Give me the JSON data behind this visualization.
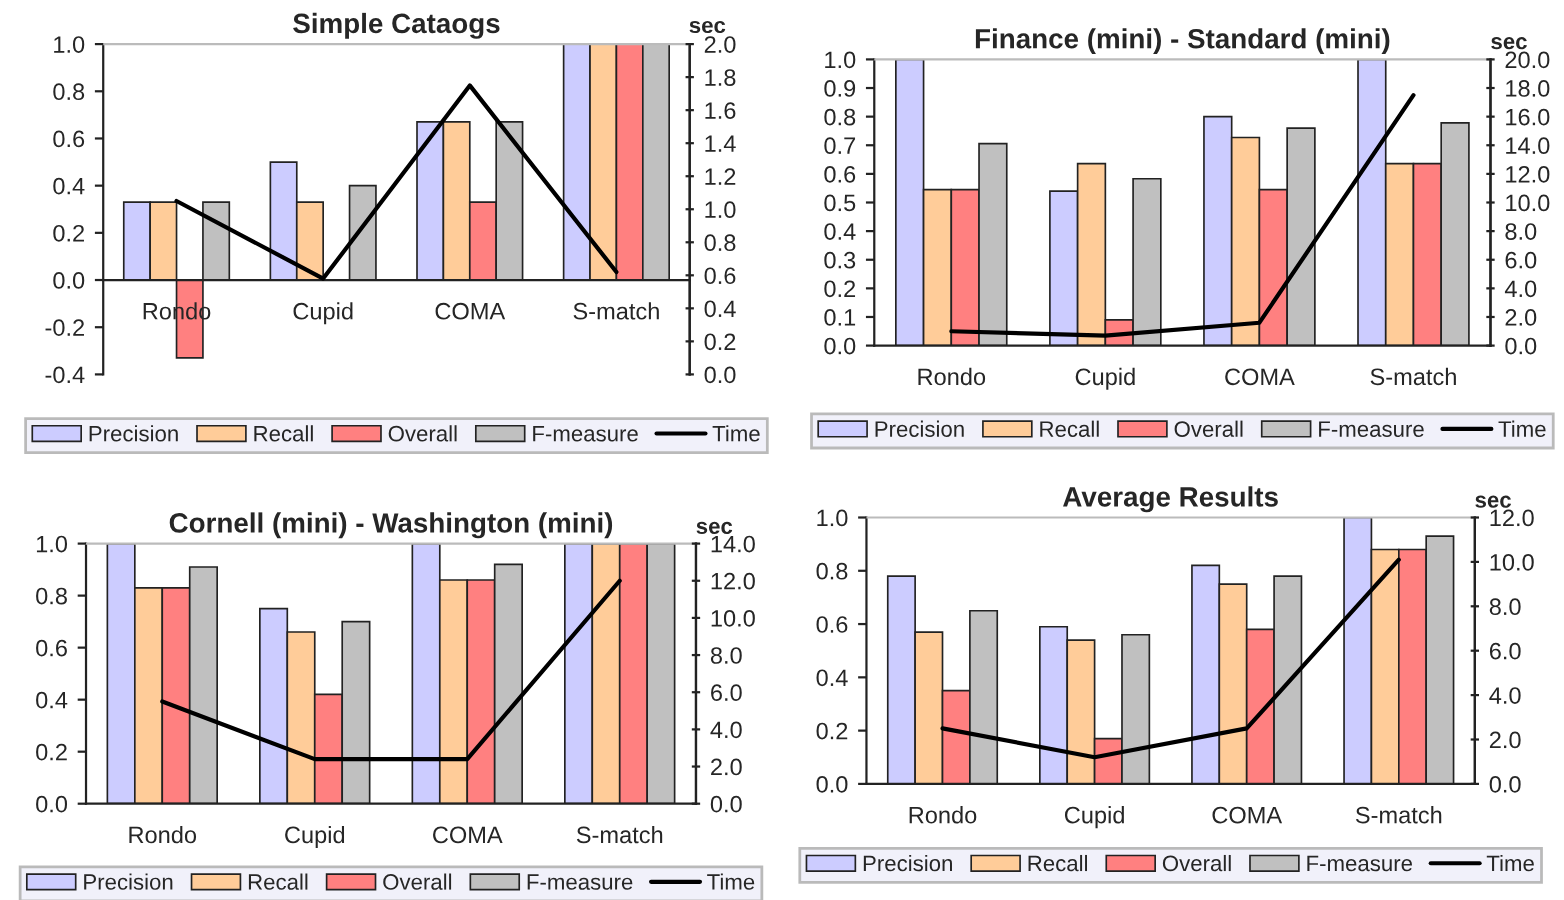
{
  "chart_data": [
    {
      "type": "bar",
      "title": "Simple Cataogs",
      "categories": [
        "Rondo",
        "Cupid",
        "COMA",
        "S-match"
      ],
      "series": [
        {
          "name": "Precision",
          "color": "#ccccff",
          "values": [
            0.33,
            0.5,
            0.67,
            1.0
          ]
        },
        {
          "name": "Recall",
          "color": "#ffcc99",
          "values": [
            0.33,
            0.33,
            0.67,
            1.0
          ]
        },
        {
          "name": "Overall",
          "color": "#ff8080",
          "values": [
            -0.33,
            null,
            0.33,
            1.0
          ]
        },
        {
          "name": "F-measure",
          "color": "#c0c0c0",
          "values": [
            0.33,
            0.4,
            0.67,
            1.0
          ]
        },
        {
          "name": "Time",
          "color": "#000000",
          "type": "line",
          "axis": "y2",
          "values": [
            1.05,
            0.58,
            1.75,
            0.62
          ]
        }
      ],
      "ylim": [
        -0.4,
        1.0
      ],
      "yticks": [
        {
          "value": -0.4,
          "label": "-0.4"
        },
        {
          "value": -0.2,
          "label": "-0.2"
        },
        {
          "value": 0,
          "label": "0.0"
        },
        {
          "value": 0.2,
          "label": "0.2"
        },
        {
          "value": 0.4,
          "label": "0.4"
        },
        {
          "value": 0.6,
          "label": "0.6"
        },
        {
          "value": 0.8,
          "label": "0.8"
        },
        {
          "value": 1,
          "label": "1.0"
        }
      ],
      "y2lim": [
        0,
        2.0
      ],
      "y2ticks": [
        {
          "value": 0,
          "label": "0.0"
        },
        {
          "value": 0.2,
          "label": "0.2"
        },
        {
          "value": 0.4,
          "label": "0.4"
        },
        {
          "value": 0.6,
          "label": "0.6"
        },
        {
          "value": 0.8,
          "label": "0.8"
        },
        {
          "value": 1.0,
          "label": "1.0"
        },
        {
          "value": 1.2,
          "label": "1.2"
        },
        {
          "value": 1.4,
          "label": "1.4"
        },
        {
          "value": 1.6,
          "label": "1.6"
        },
        {
          "value": 1.8,
          "label": "1.8"
        },
        {
          "value": 2.0,
          "label": "2.0"
        }
      ],
      "y2label": "sec",
      "legend": "bottom",
      "marker": "none"
    },
    {
      "type": "bar",
      "title": "Finance (mini) - Standard (mini)",
      "categories": [
        "Rondo",
        "Cupid",
        "COMA",
        "S-match"
      ],
      "series": [
        {
          "name": "Precision",
          "color": "#ccccff",
          "values": [
            1.0,
            0.54,
            0.8,
            1.0
          ]
        },
        {
          "name": "Recall",
          "color": "#ffcc99",
          "values": [
            0.545,
            0.636,
            0.727,
            0.636
          ]
        },
        {
          "name": "Overall",
          "color": "#ff8080",
          "values": [
            0.545,
            0.09,
            0.545,
            0.636
          ]
        },
        {
          "name": "F-measure",
          "color": "#c0c0c0",
          "values": [
            0.706,
            0.583,
            0.76,
            0.778
          ]
        },
        {
          "name": "Time",
          "color": "#000000",
          "type": "line",
          "axis": "y2",
          "values": [
            1.0,
            0.7,
            1.6,
            17.5
          ]
        }
      ],
      "ylim": [
        0,
        1.0
      ],
      "yticks": [
        {
          "value": 0,
          "label": "0.0"
        },
        {
          "value": 0.1,
          "label": "0.1"
        },
        {
          "value": 0.2,
          "label": "0.2"
        },
        {
          "value": 0.3,
          "label": "0.3"
        },
        {
          "value": 0.4,
          "label": "0.4"
        },
        {
          "value": 0.5,
          "label": "0.5"
        },
        {
          "value": 0.6,
          "label": "0.6"
        },
        {
          "value": 0.7,
          "label": "0.7"
        },
        {
          "value": 0.8,
          "label": "0.8"
        },
        {
          "value": 0.9,
          "label": "0.9"
        },
        {
          "value": 1.0,
          "label": "1.0"
        }
      ],
      "y2lim": [
        0,
        20.0
      ],
      "y2ticks": [
        {
          "value": 0,
          "label": "0.0"
        },
        {
          "value": 2,
          "label": "2.0"
        },
        {
          "value": 4,
          "label": "4.0"
        },
        {
          "value": 6,
          "label": "6.0"
        },
        {
          "value": 8,
          "label": "8.0"
        },
        {
          "value": 10,
          "label": "10.0"
        },
        {
          "value": 12,
          "label": "12.0"
        },
        {
          "value": 14,
          "label": "14.0"
        },
        {
          "value": 16,
          "label": "16.0"
        },
        {
          "value": 18,
          "label": "18.0"
        },
        {
          "value": 20,
          "label": "20.0"
        }
      ],
      "y2label": "sec",
      "legend": "bottom",
      "marker": "none"
    },
    {
      "type": "bar",
      "title": "Cornell (mini) - Washington (mini)",
      "categories": [
        "Rondo",
        "Cupid",
        "COMA",
        "S-match"
      ],
      "series": [
        {
          "name": "Precision",
          "color": "#ccccff",
          "values": [
            1.0,
            0.75,
            1.0,
            1.0
          ]
        },
        {
          "name": "Recall",
          "color": "#ffcc99",
          "values": [
            0.83,
            0.66,
            0.86,
            1.0
          ]
        },
        {
          "name": "Overall",
          "color": "#ff8080",
          "values": [
            0.83,
            0.42,
            0.86,
            1.0
          ]
        },
        {
          "name": "F-measure",
          "color": "#c0c0c0",
          "values": [
            0.91,
            0.7,
            0.92,
            1.0
          ]
        },
        {
          "name": "Time",
          "color": "#000000",
          "type": "line",
          "axis": "y2",
          "values": [
            5.5,
            2.4,
            2.4,
            12.0
          ]
        }
      ],
      "ylim": [
        0,
        1.0
      ],
      "yticks": [
        {
          "value": 0,
          "label": "0.0"
        },
        {
          "value": 0.2,
          "label": "0.2"
        },
        {
          "value": 0.4,
          "label": "0.4"
        },
        {
          "value": 0.6,
          "label": "0.6"
        },
        {
          "value": 0.8,
          "label": "0.8"
        },
        {
          "value": 1.0,
          "label": "1.0"
        }
      ],
      "y2lim": [
        0,
        14.0
      ],
      "y2ticks": [
        {
          "value": 0,
          "label": "0.0"
        },
        {
          "value": 2,
          "label": "2.0"
        },
        {
          "value": 4,
          "label": "4.0"
        },
        {
          "value": 6,
          "label": "6.0"
        },
        {
          "value": 8,
          "label": "8.0"
        },
        {
          "value": 10,
          "label": "10.0"
        },
        {
          "value": 12,
          "label": "12.0"
        },
        {
          "value": 14,
          "label": "14.0"
        }
      ],
      "y2label": "sec",
      "legend": "bottom",
      "marker": "none"
    },
    {
      "type": "bar",
      "title": "Average Results",
      "categories": [
        "Rondo",
        "Cupid",
        "COMA",
        "S-match"
      ],
      "series": [
        {
          "name": "Precision",
          "color": "#ccccff",
          "values": [
            0.78,
            0.59,
            0.82,
            1.0
          ]
        },
        {
          "name": "Recall",
          "color": "#ffcc99",
          "values": [
            0.57,
            0.54,
            0.75,
            0.88
          ]
        },
        {
          "name": "Overall",
          "color": "#ff8080",
          "values": [
            0.35,
            0.17,
            0.58,
            0.88
          ]
        },
        {
          "name": "F-measure",
          "color": "#c0c0c0",
          "values": [
            0.65,
            0.56,
            0.78,
            0.93
          ]
        },
        {
          "name": "Time",
          "color": "#000000",
          "type": "line",
          "axis": "y2",
          "values": [
            2.5,
            1.2,
            2.5,
            10.1
          ]
        }
      ],
      "ylim": [
        0,
        1.0
      ],
      "yticks": [
        {
          "value": 0,
          "label": "0.0"
        },
        {
          "value": 0.2,
          "label": "0.2"
        },
        {
          "value": 0.4,
          "label": "0.4"
        },
        {
          "value": 0.6,
          "label": "0.6"
        },
        {
          "value": 0.8,
          "label": "0.8"
        },
        {
          "value": 1.0,
          "label": "1.0"
        }
      ],
      "y2lim": [
        0,
        12.0
      ],
      "y2ticks": [
        {
          "value": 0,
          "label": "0.0"
        },
        {
          "value": 2,
          "label": "2.0"
        },
        {
          "value": 4,
          "label": "4.0"
        },
        {
          "value": 6,
          "label": "6.0"
        },
        {
          "value": 8,
          "label": "8.0"
        },
        {
          "value": 10,
          "label": "10.0"
        },
        {
          "value": 12,
          "label": "12.0"
        }
      ],
      "y2label": "sec",
      "legend": "bottom",
      "marker": "none"
    }
  ]
}
